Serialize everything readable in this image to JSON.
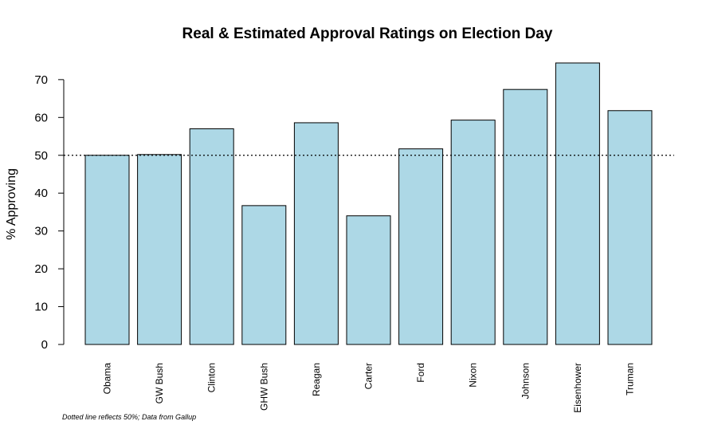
{
  "chart_data": {
    "type": "bar",
    "title": "Real & Estimated Approval Ratings on Election Day",
    "xlabel": "",
    "ylabel": "% Approving",
    "categories": [
      "Obama",
      "GW Bush",
      "Clinton",
      "GHW Bush",
      "Reagan",
      "Carter",
      "Ford",
      "Nixon",
      "Johnson",
      "Eisenhower",
      "Truman"
    ],
    "values": [
      50,
      50.2,
      57,
      36.7,
      58.6,
      34,
      51.7,
      59.3,
      67.4,
      74.4,
      61.8
    ],
    "ylim": [
      0,
      75
    ],
    "yticks": [
      0,
      10,
      20,
      30,
      40,
      50,
      60,
      70
    ],
    "reference_line": 50,
    "bar_color": "#add8e6",
    "grid": false,
    "note": "Dotted line reflects 50%; Data from Gallup"
  }
}
